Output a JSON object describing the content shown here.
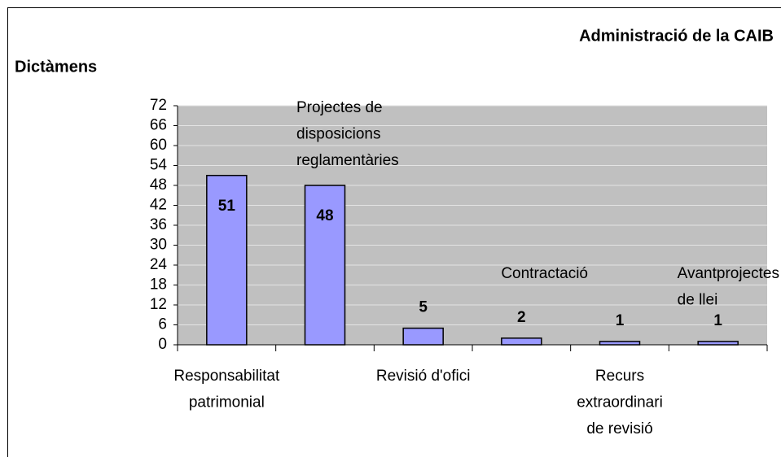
{
  "chart_data": {
    "type": "bar",
    "title": "Administració de la CAIB",
    "subtitle": "Dictàmens",
    "categories": [
      "Responsabilitat patrimonial",
      "Projectes de disposicions reglamentàries",
      "Revisió d'ofici",
      "Contractació",
      "Recurs extraordinari de revisió",
      "Avantprojectes de llei"
    ],
    "values": [
      51,
      48,
      5,
      2,
      1,
      1
    ],
    "color": "#9999ff",
    "ylim": [
      0,
      72
    ],
    "yticks": [
      0,
      6,
      12,
      18,
      24,
      30,
      36,
      42,
      48,
      54,
      60,
      66,
      72
    ],
    "grid": true
  }
}
